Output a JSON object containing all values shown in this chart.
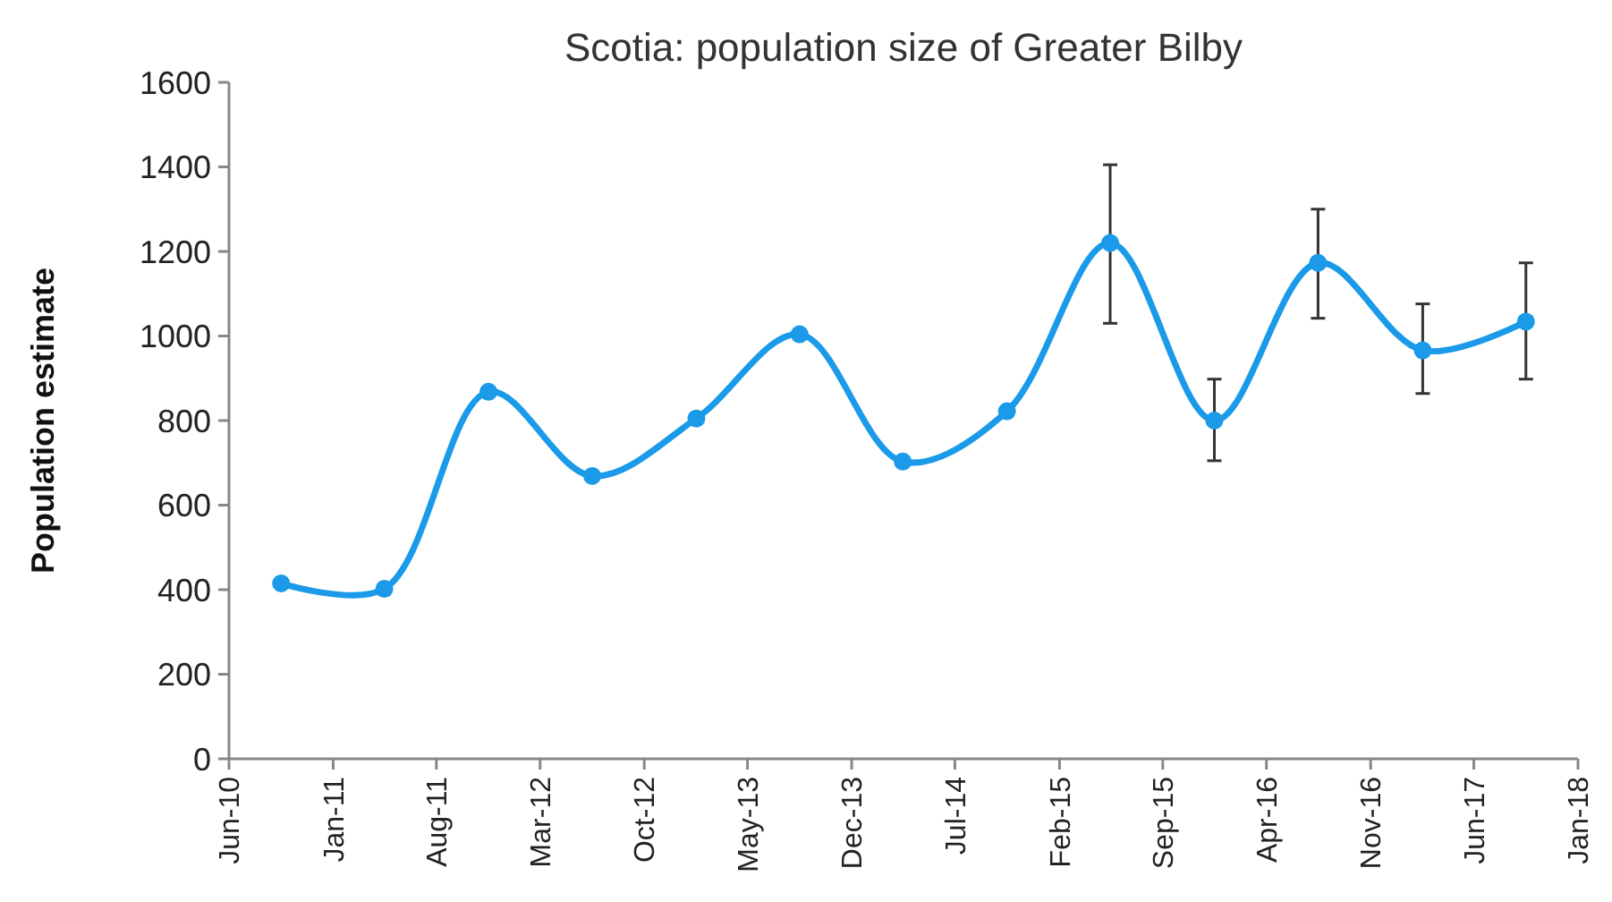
{
  "chart_data": {
    "type": "line",
    "title": "Scotia: population size of Greater Bilby",
    "ylabel": "Population estimate",
    "x": [
      "2010-09-16",
      "2011-04-16",
      "2011-11-16",
      "2012-06-16",
      "2013-01-16",
      "2013-08-16",
      "2014-03-16",
      "2014-10-16",
      "2015-05-16",
      "2015-12-16",
      "2016-07-16",
      "2017-02-16",
      "2017-09-16"
    ],
    "series": [
      {
        "color": "#1a9ae8",
        "values": [
          415,
          402,
          868,
          669,
          805,
          1004,
          703,
          822,
          1220,
          800,
          1173,
          966,
          1034
        ],
        "errors": [
          null,
          null,
          null,
          null,
          null,
          null,
          null,
          null,
          [
            1030,
            1405
          ],
          [
            705,
            898
          ],
          [
            1042,
            1300
          ],
          [
            864,
            1076
          ],
          [
            898,
            1173
          ]
        ]
      }
    ],
    "xlim": [
      "2010-06",
      "2018-01"
    ],
    "xticks": [
      {
        "value": "2010-06",
        "label": "Jun-10"
      },
      {
        "value": "2011-01",
        "label": "Jan-11"
      },
      {
        "value": "2011-08",
        "label": "Aug-11"
      },
      {
        "value": "2012-03",
        "label": "Mar-12"
      },
      {
        "value": "2012-10",
        "label": "Oct-12"
      },
      {
        "value": "2013-05",
        "label": "May-13"
      },
      {
        "value": "2013-12",
        "label": "Dec-13"
      },
      {
        "value": "2014-07",
        "label": "Jul-14"
      },
      {
        "value": "2015-02",
        "label": "Feb-15"
      },
      {
        "value": "2015-09",
        "label": "Sep-15"
      },
      {
        "value": "2016-04",
        "label": "Apr-16"
      },
      {
        "value": "2016-11",
        "label": "Nov-16"
      },
      {
        "value": "2017-06",
        "label": "Jun-17"
      },
      {
        "value": "2018-01",
        "label": "Jan-18"
      }
    ],
    "ylim": [
      0,
      1600
    ],
    "yticks": [
      0,
      200,
      400,
      600,
      800,
      1000,
      1200,
      1400,
      1600
    ],
    "grid": false,
    "marker": "circle",
    "line_style": "solid"
  }
}
